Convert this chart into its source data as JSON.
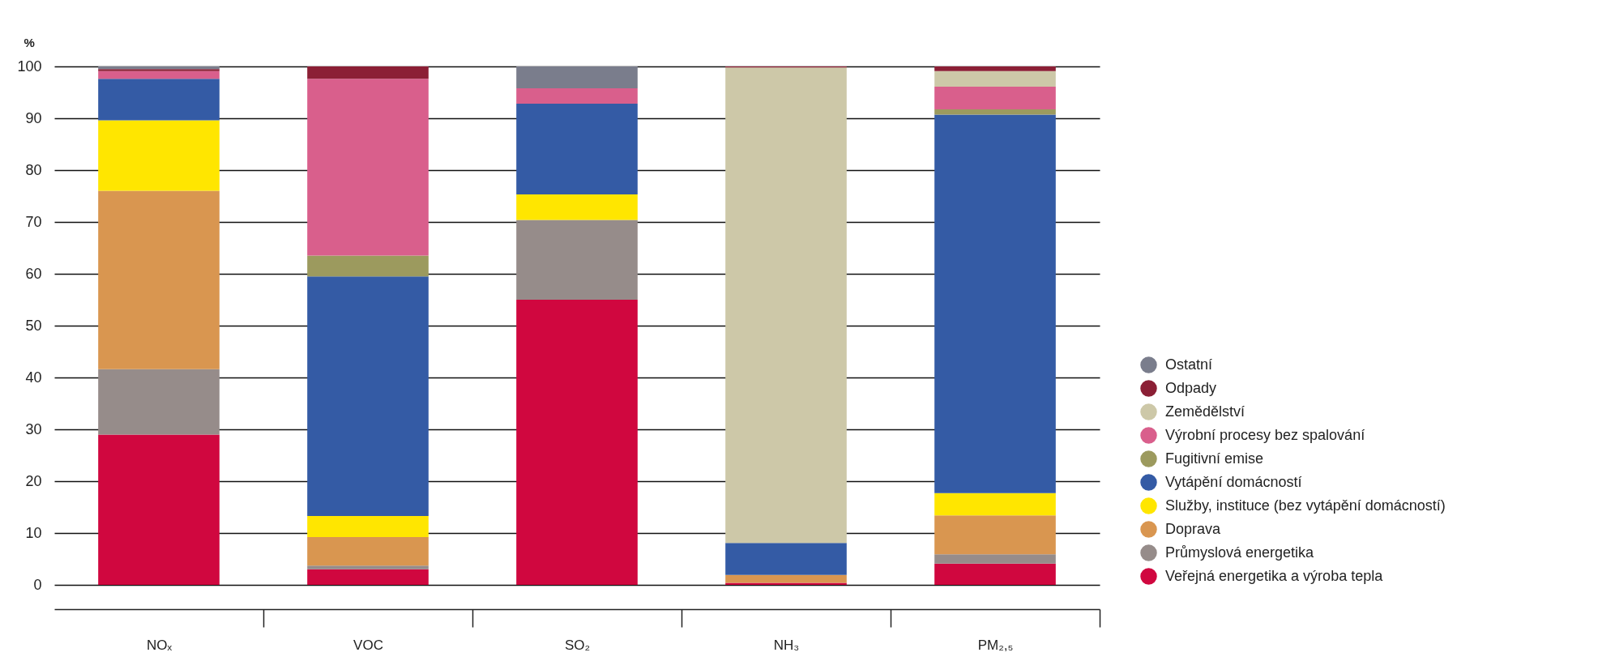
{
  "chart_data": {
    "type": "bar",
    "stacked": true,
    "ylabel": "%",
    "categories": [
      "NOₓ",
      "VOC",
      "SO₂",
      "NH₃",
      "PM₂,₅"
    ],
    "ylim": [
      0,
      100
    ],
    "yticks": [
      0,
      10,
      20,
      30,
      40,
      50,
      60,
      70,
      80,
      90,
      100
    ],
    "grid": "y",
    "legend": "right",
    "series": [
      {
        "name": "Veřejná energetika a výroba tepla",
        "color": "#d0073f",
        "values": [
          29.0,
          3.0,
          55.0,
          0.4,
          4.1
        ]
      },
      {
        "name": "Průmyslová energetika",
        "color": "#968c8a",
        "values": [
          12.6,
          0.7,
          15.4,
          null,
          1.8
        ]
      },
      {
        "name": "Doprava",
        "color": "#d99650",
        "values": [
          34.4,
          5.5,
          null,
          1.5,
          7.5
        ]
      },
      {
        "name": "Služby, instituce (bez vytápění domácností)",
        "color": "#ffe600",
        "values": [
          13.6,
          4.1,
          4.9,
          null,
          4.3
        ]
      },
      {
        "name": "Vytápění domácností",
        "color": "#345ba5",
        "values": [
          8.0,
          46.2,
          17.5,
          6.2,
          73.0
        ]
      },
      {
        "name": "Fugitivní emise",
        "color": "#9c9a5e",
        "values": [
          null,
          4.0,
          null,
          null,
          1.0
        ]
      },
      {
        "name": "Výrobní procesy bez spalování",
        "color": "#d95f8c",
        "values": [
          1.5,
          34.1,
          3.0,
          null,
          4.4
        ]
      },
      {
        "name": "Zemědělství",
        "color": "#cdc8a8",
        "values": [
          null,
          null,
          null,
          91.7,
          3.0
        ]
      },
      {
        "name": "Odpady",
        "color": "#8b1f35",
        "values": [
          0.4,
          2.4,
          null,
          0.2,
          0.9
        ]
      },
      {
        "name": "Ostatní",
        "color": "#7a7d8c",
        "values": [
          0.5,
          null,
          4.2,
          null,
          null
        ]
      }
    ]
  }
}
